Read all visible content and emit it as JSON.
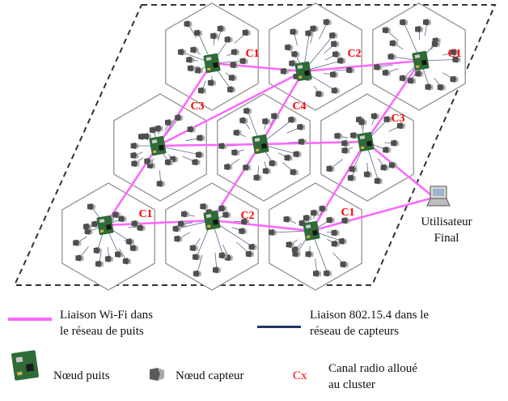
{
  "colors": {
    "wifi_link": "#ff66ff",
    "zigbee_link": "#1f3864",
    "channel_label": "#ff0000",
    "hex_stroke": "#8a8a8a",
    "board": "#2e6b36",
    "sensor": "#6a6a6a"
  },
  "diagram": {
    "user_label_line1": "Utilisateur",
    "user_label_line2": "Final",
    "clusters": [
      {
        "channel": "C1"
      },
      {
        "channel": "C2"
      },
      {
        "channel": "C1"
      },
      {
        "channel": "C3"
      },
      {
        "channel": "C4"
      },
      {
        "channel": "C3"
      },
      {
        "channel": "C1"
      },
      {
        "channel": "C2"
      },
      {
        "channel": "C1"
      }
    ]
  },
  "legend": {
    "wifi_label_line1": "Liaison Wi-Fi  dans",
    "wifi_label_line2": "le réseau de puits",
    "zigbee_label_line1": "Liaison 802.15.4 dans le",
    "zigbee_label_line2": "réseau de capteurs",
    "sink_label": "Nœud puits",
    "sensor_label": "Nœud capteur",
    "cx_symbol": "Cx",
    "channel_label_line1": "Canal radio alloué",
    "channel_label_line2": "au cluster"
  },
  "icons": {
    "sink": "sink-node-board-icon",
    "sensor": "sensor-node-icon",
    "user": "laptop-icon"
  }
}
